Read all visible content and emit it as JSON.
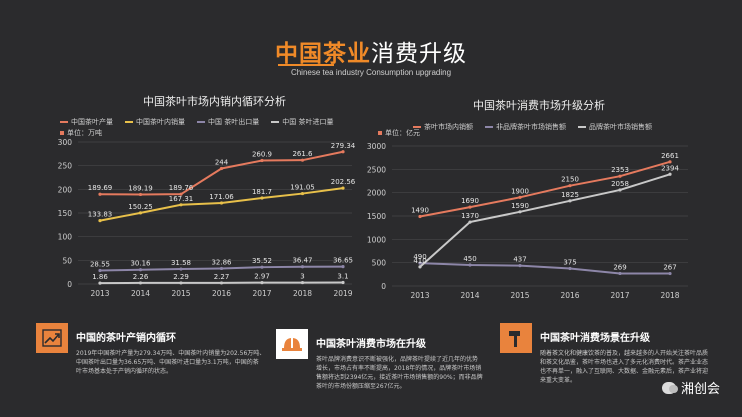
{
  "header": {
    "title_highlight": "中国茶业",
    "title_rest": "消费升级",
    "subtitle": "Chinese tea industry Consumption upgrading"
  },
  "colors": {
    "orange": "#e57a5e",
    "yellow": "#e8c04a",
    "purple": "#8d86a8",
    "gray": "#c8c8c8",
    "accent": "#f08a28"
  },
  "chart_data": [
    {
      "type": "line",
      "title": "中国茶叶市场内销内循环分析",
      "unit": "单位：万吨",
      "x": [
        "2013",
        "2014",
        "2015",
        "2016",
        "2017",
        "2018",
        "2019"
      ],
      "ylim": [
        0,
        300
      ],
      "yticks": [
        0,
        50,
        100,
        150,
        200,
        250,
        300
      ],
      "grid": true,
      "legend": "top",
      "series": [
        {
          "name": "中国茶叶产量",
          "color": "#e57a5e",
          "values": [
            189.69,
            189.19,
            189.76,
            244,
            260.9,
            261.6,
            279.34
          ],
          "labels": [
            "189.69",
            "189.19",
            "189.76",
            "244",
            "260.9",
            "261.6",
            "279.34"
          ]
        },
        {
          "name": "中国茶叶内销量",
          "color": "#e8c04a",
          "values": [
            133.83,
            150.25,
            167.31,
            171.06,
            181.7,
            191.05,
            202.56
          ],
          "labels": [
            "133.83",
            "150.25",
            "167.31",
            "171.06",
            "181.7",
            "191.05",
            "202.56"
          ]
        },
        {
          "name": "中国 茶叶出口量",
          "color": "#8d86a8",
          "values": [
            28.55,
            30.16,
            31.58,
            32.86,
            35.52,
            36.47,
            36.65
          ],
          "labels": [
            "28.55",
            "30.16",
            "31.58",
            "32.86",
            "35.52",
            "36.47",
            "36.65"
          ]
        },
        {
          "name": "中国 茶叶进口量",
          "color": "#c8c8c8",
          "values": [
            1.86,
            2.26,
            2.29,
            2.27,
            2.97,
            3,
            3.1
          ],
          "labels": [
            "1.86",
            "2.26",
            "2.29",
            "2.27",
            "2.97",
            "3",
            "3.1"
          ]
        }
      ]
    },
    {
      "type": "line",
      "title": "中国茶叶消费市场升级分析",
      "unit": "单位：亿元",
      "x": [
        "2013",
        "2014",
        "2015",
        "2016",
        "2017",
        "2018"
      ],
      "ylim": [
        0,
        3000
      ],
      "yticks": [
        0,
        500,
        1000,
        1500,
        2000,
        2500,
        3000
      ],
      "grid": true,
      "legend": "top",
      "series": [
        {
          "name": "茶叶市场内销额",
          "color": "#e57a5e",
          "values": [
            1490,
            1690,
            1900,
            2150,
            2353,
            2661
          ],
          "labels": [
            "1490",
            "1690",
            "1900",
            "2150",
            "2353",
            "2661"
          ]
        },
        {
          "name": "非品牌茶叶市场销售额",
          "color": "#8d86a8",
          "values": [
            490,
            450,
            437,
            375,
            269,
            267
          ],
          "labels": [
            "490",
            "450",
            "437",
            "375",
            "269",
            "267"
          ]
        },
        {
          "name": "品牌茶叶市场销售额",
          "color": "#c8c8c8",
          "values": [
            410,
            1370,
            1590,
            1825,
            2058,
            2394
          ],
          "labels": [
            "410",
            "1370",
            "1590",
            "1825",
            "2058",
            "2394"
          ]
        }
      ]
    }
  ],
  "cards": [
    {
      "title": "中国的茶叶产销内循环",
      "icon": "chart-up-icon",
      "lines": [
        "2019年中国茶叶产量为279.34万吨、中国茶叶内销量为202.56万吨、",
        "中国茶叶出口量为36.65万吨、中国茶叶进口量为3.1万吨，中国的茶",
        "叶市场基本处于产销内循环的状态。"
      ]
    },
    {
      "title": "中国茶叶消费市场在升级",
      "icon": "helmet-icon",
      "lines": [
        "茶叶品牌消费意识不断被强化，品牌茶叶提续了近几年的优势",
        "增长，市场占有率不断提高，2018年的情况，品牌茶叶市场销",
        "售额将达到2394亿元，接近茶叶市场销售额的90%；而非品牌",
        "茶叶的市场份额压缩至267亿元。"
      ]
    },
    {
      "title": "中国茶叶消费场景在升级",
      "icon": "hammer-icon",
      "lines": [
        "随着茶文化和健康饮茶的普及，越来越多的人开始关注茶叶品质",
        "和茶文化品鉴，茶叶市场也进入了多元化消费时代。茶产业业态",
        "也不再单一，融入了互联网、大数据、金融元素后，茶产业将迎",
        "来重大变革。"
      ]
    }
  ],
  "brand": {
    "name": "湘创会"
  }
}
